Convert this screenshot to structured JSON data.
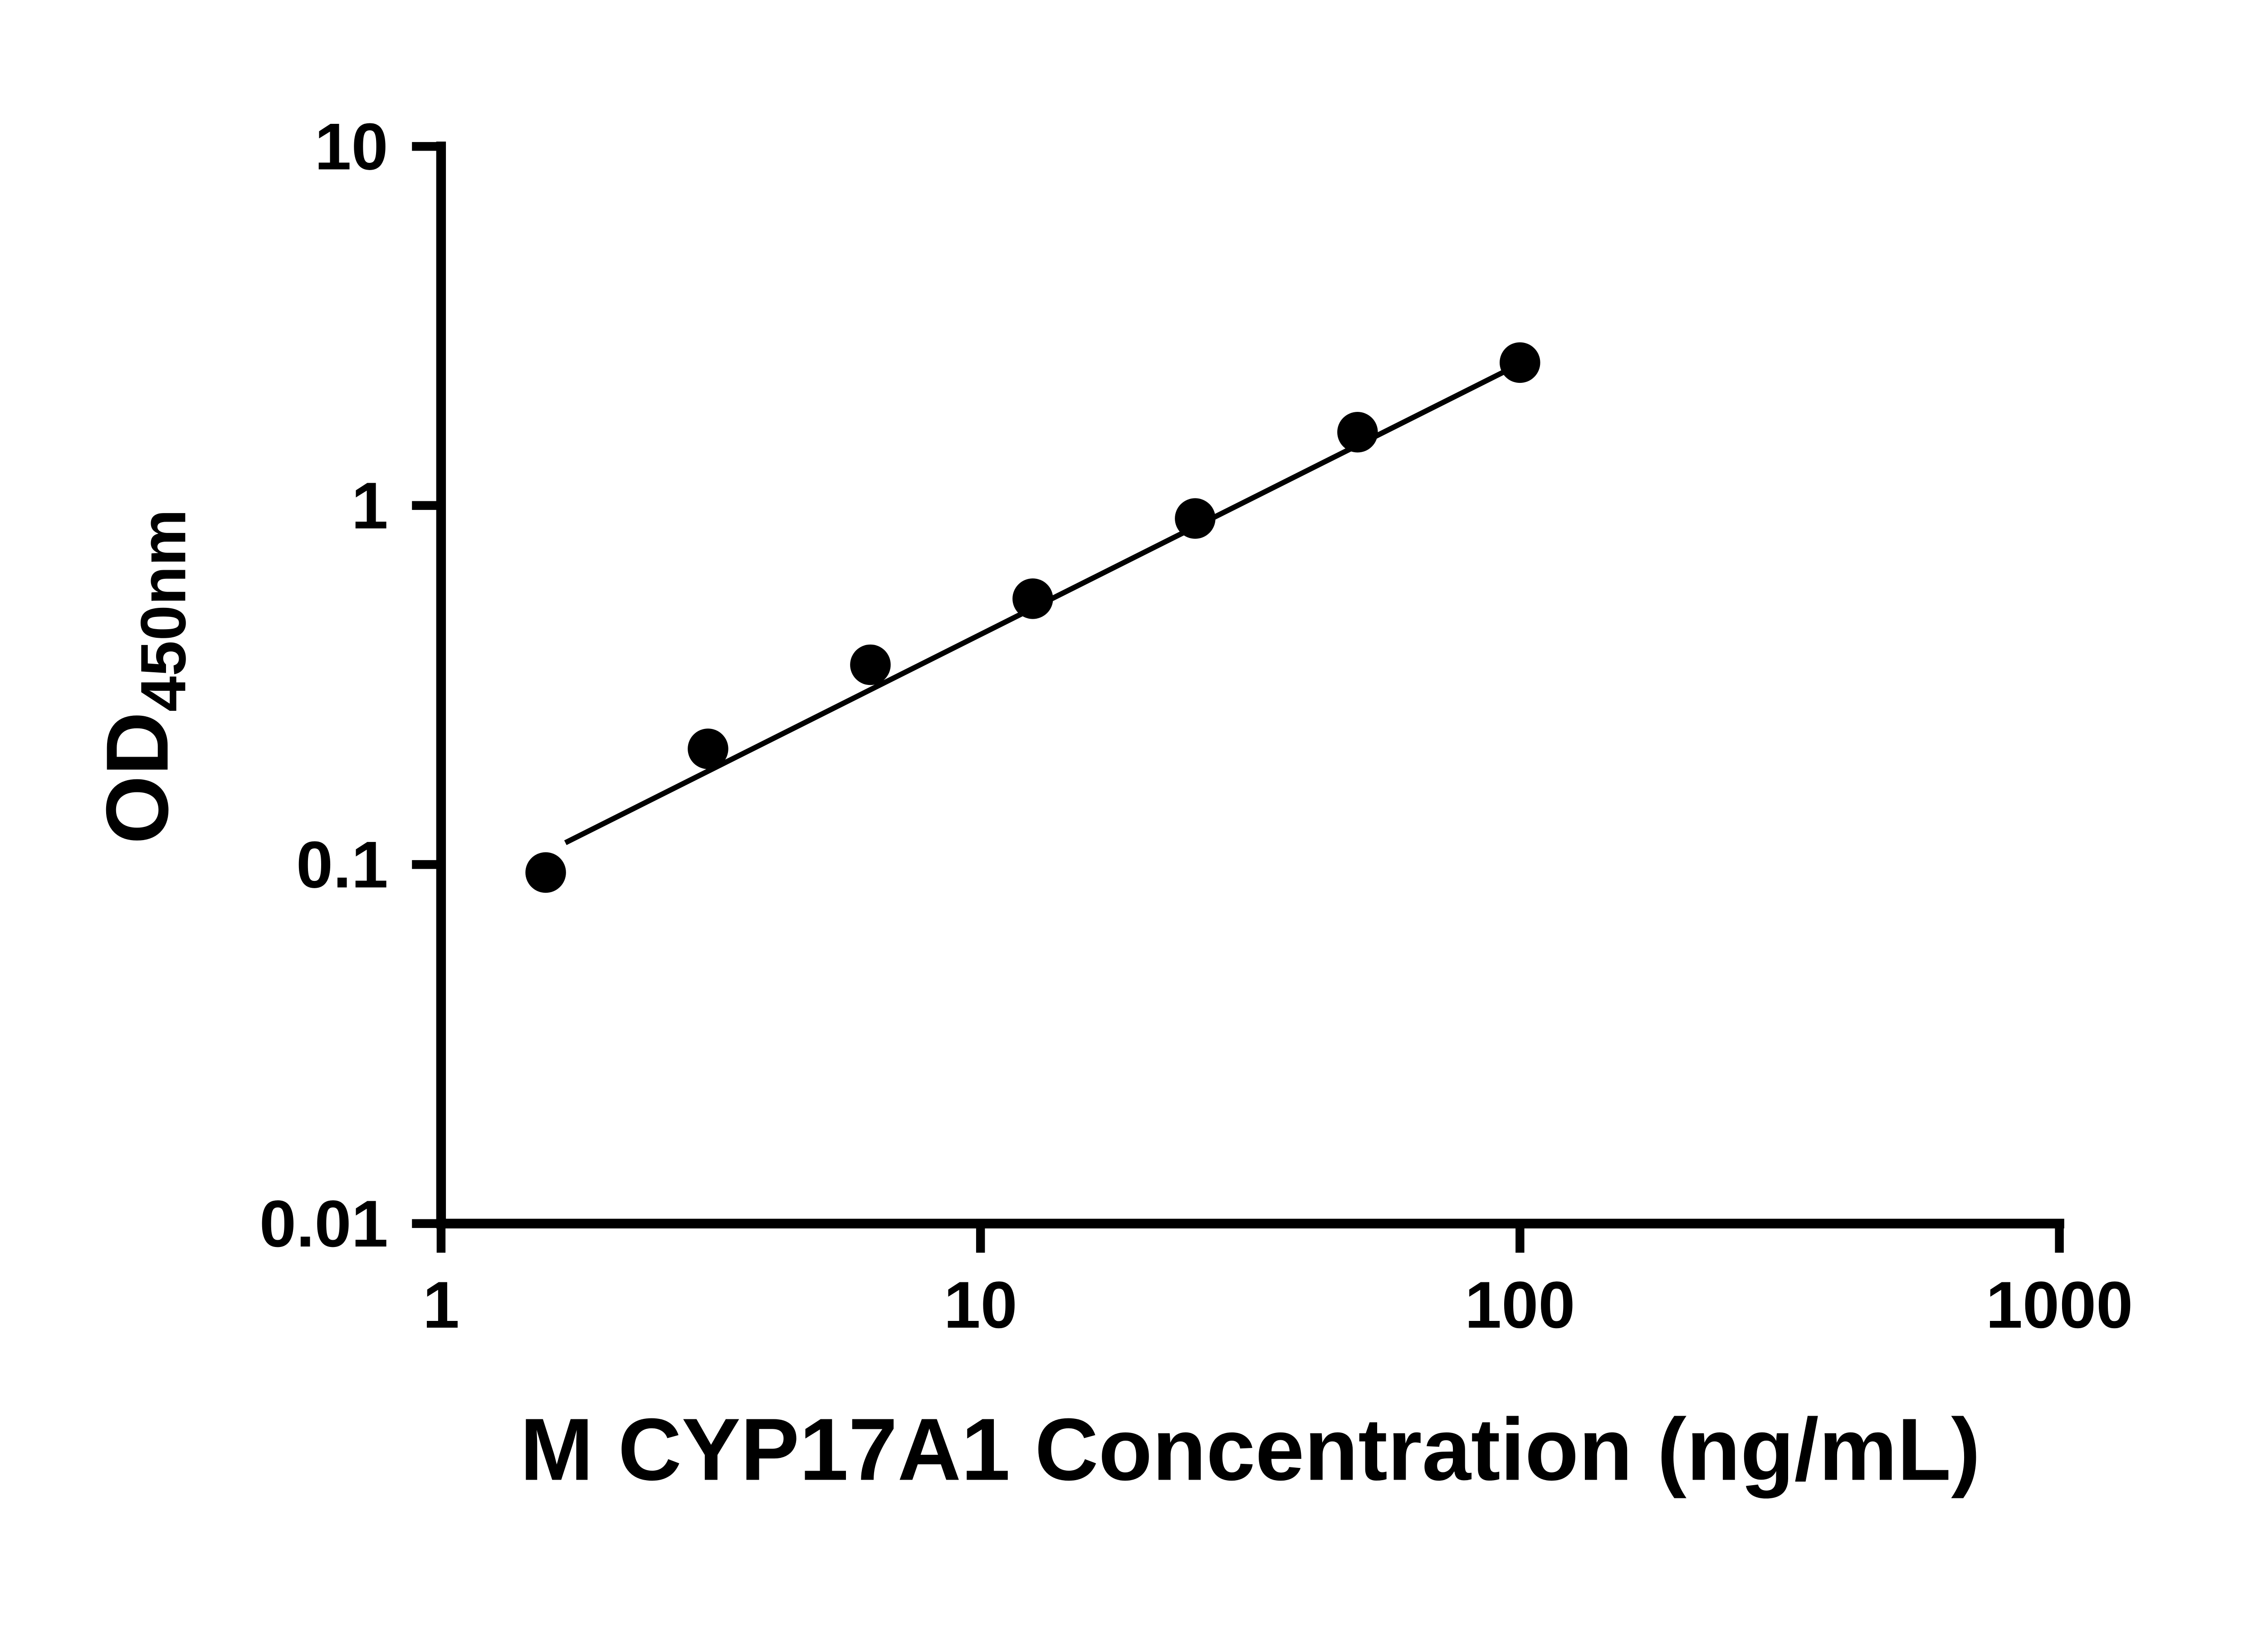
{
  "chart_data": {
    "type": "scatter",
    "title": "",
    "xlabel": "M CYP17A1 Concentration (ng/mL)",
    "ylabel_main": "OD",
    "ylabel_sub": "450nm",
    "x_scale": "log",
    "y_scale": "log",
    "xlim": [
      1,
      1000
    ],
    "ylim": [
      0.01,
      10
    ],
    "x_ticks": [
      1,
      10,
      100,
      1000
    ],
    "x_tick_labels": [
      "1",
      "10",
      "100",
      "1000"
    ],
    "y_ticks": [
      0.01,
      0.1,
      1,
      10
    ],
    "y_tick_labels": [
      "0.01",
      "0.1",
      "1",
      "10"
    ],
    "grid": false,
    "legend": false,
    "points": {
      "x": [
        1.563,
        3.125,
        6.25,
        12.5,
        25,
        50,
        100
      ],
      "y": [
        0.095,
        0.21,
        0.36,
        0.55,
        0.92,
        1.6,
        2.5
      ]
    },
    "trend_line": {
      "x": [
        1.7,
        100
      ],
      "y": [
        0.115,
        2.48
      ]
    },
    "colors": {
      "point": "#000000",
      "line": "#000000",
      "axis": "#000000",
      "text": "#000000",
      "background": "#ffffff"
    }
  }
}
